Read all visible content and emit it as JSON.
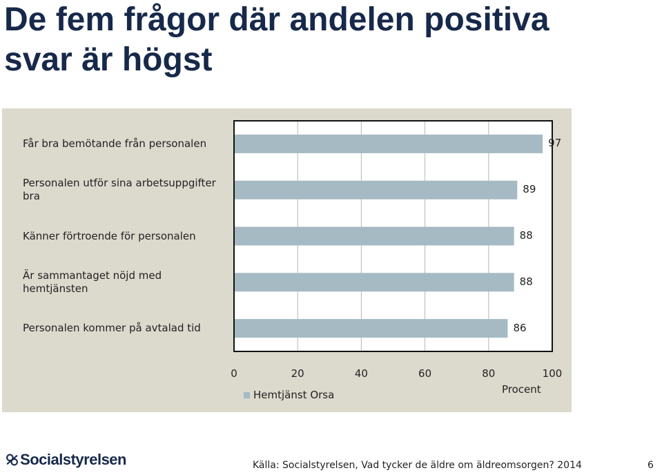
{
  "slide": {
    "title": "De fem frågor där andelen positiva svar är högst",
    "source": "Källa: Socialstyrelsen, Vad tycker de äldre om äldreomsorgen? 2014",
    "page_number": "6",
    "logo_text": "Socialstyrelsen"
  },
  "chart_data": {
    "type": "bar",
    "orientation": "horizontal",
    "categories": [
      "Får bra bemötande från personalen",
      "Personalen utför sina arbetsuppgifter bra",
      "Känner förtroende för personalen",
      "Är sammantaget nöjd med hemtjänsten",
      "Personalen kommer på avtalad tid"
    ],
    "series": [
      {
        "name": "Hemtjänst Orsa",
        "values": [
          97,
          89,
          88,
          88,
          86
        ],
        "color": "#a6bac4"
      }
    ],
    "xlabel": "Procent",
    "xlim": [
      0,
      100
    ],
    "xticks": [
      "0",
      "20",
      "40",
      "60",
      "80",
      "100"
    ],
    "grid": true,
    "legend_position": "bottom"
  }
}
